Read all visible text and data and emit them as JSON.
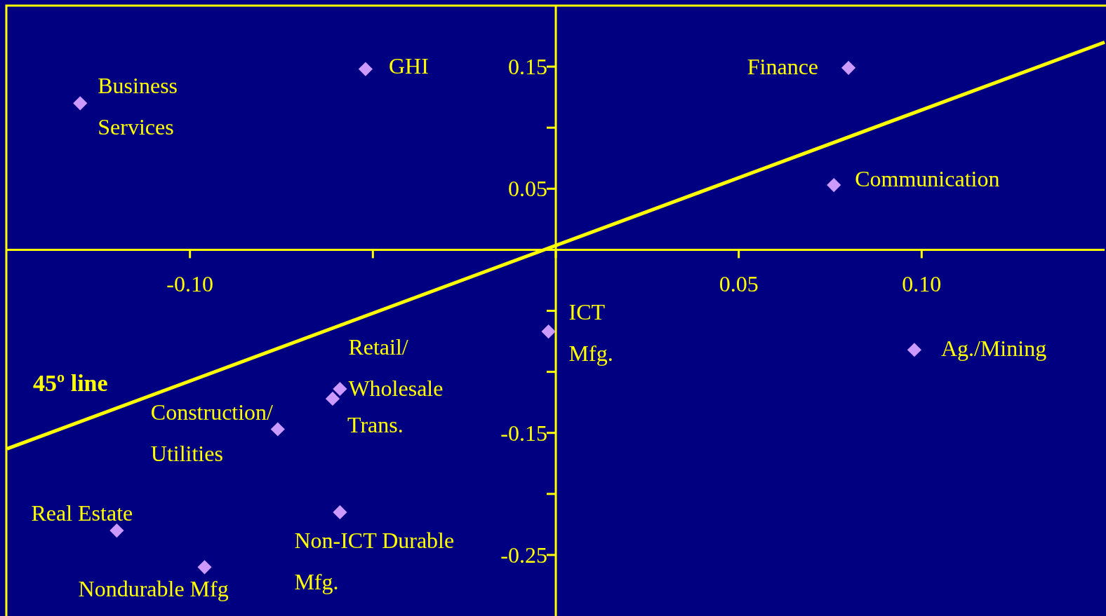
{
  "chart_data": {
    "type": "scatter",
    "xlim": [
      -0.15,
      0.15
    ],
    "ylim": [
      -0.3,
      0.2
    ],
    "xticks": [
      {
        "value": -0.1,
        "label": "-0.10"
      },
      {
        "value": -0.05,
        "label": null
      },
      {
        "value": 0,
        "label": null
      },
      {
        "value": 0.05,
        "label": "0.05"
      },
      {
        "value": 0.1,
        "label": "0.10"
      }
    ],
    "yticks": [
      {
        "value": 0.15,
        "label": "0.15"
      },
      {
        "value": 0.1,
        "label": null
      },
      {
        "value": 0.05,
        "label": "0.05"
      },
      {
        "value": 0,
        "label": null
      },
      {
        "value": -0.05,
        "label": null
      },
      {
        "value": -0.1,
        "label": null
      },
      {
        "value": -0.15,
        "label": "-0.15"
      },
      {
        "value": -0.2,
        "label": null
      },
      {
        "value": -0.25,
        "label": "-0.25"
      }
    ],
    "grid": false,
    "series": [
      {
        "color": "#cc99ff",
        "marker": "diamond",
        "x": [
          -0.13,
          -0.052,
          0.08,
          0.076,
          -0.002,
          0.098,
          -0.059,
          -0.061,
          -0.076,
          -0.059,
          -0.12,
          -0.096
        ],
        "values": [
          0.12,
          0.148,
          0.149,
          0.053,
          -0.067,
          -0.082,
          -0.114,
          -0.122,
          -0.147,
          -0.215,
          -0.23,
          -0.26
        ]
      },
      {
        "type": "line",
        "name": "45º line",
        "color": "#ffff00",
        "x": [
          -0.15,
          0.15
        ],
        "values": [
          -0.163,
          0.17
        ]
      }
    ],
    "annotations": [
      {
        "text": "Business Services",
        "x": -0.13,
        "y": 0.12
      },
      {
        "text": "GHI",
        "x": -0.052,
        "y": 0.148
      },
      {
        "text": "Finance",
        "x": 0.08,
        "y": 0.149
      },
      {
        "text": "Communication",
        "x": 0.076,
        "y": 0.053
      },
      {
        "text": "ICT Mfg.",
        "x": -0.002,
        "y": -0.067
      },
      {
        "text": "Ag./Mining",
        "x": 0.098,
        "y": -0.082
      },
      {
        "text": "Retail/Wholesale",
        "x": -0.059,
        "y": -0.114
      },
      {
        "text": "Trans.",
        "x": -0.061,
        "y": -0.122
      },
      {
        "text": "Construction/Utilities",
        "x": -0.076,
        "y": -0.147
      },
      {
        "text": "Non-ICT Durable Mfg.",
        "x": -0.059,
        "y": -0.215
      },
      {
        "text": "Real Estate",
        "x": -0.12,
        "y": -0.23
      },
      {
        "text": "Nondurable Mfg",
        "x": -0.096,
        "y": -0.26
      }
    ]
  }
}
